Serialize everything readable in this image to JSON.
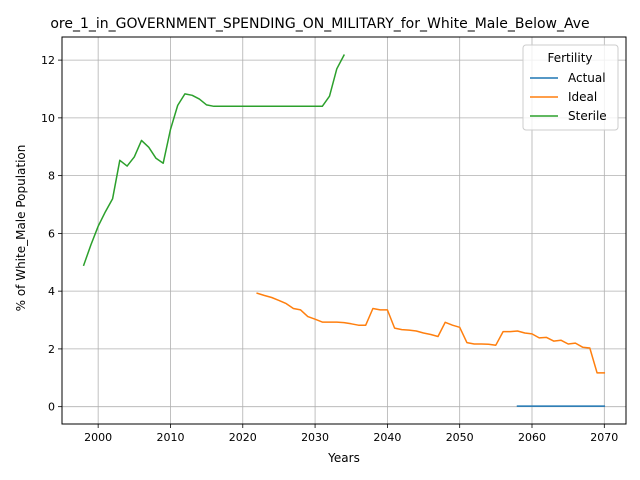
{
  "chart_data": {
    "type": "line",
    "title": "ore_1_in_GOVERNMENT_SPENDING_ON_MILITARY_for_White_Male_Below_Ave",
    "xlabel": "Years",
    "ylabel": "% of White_Male Population",
    "xlim": [
      1995,
      2073
    ],
    "ylim": [
      -0.6,
      12.8
    ],
    "xticks": [
      2000,
      2010,
      2020,
      2030,
      2040,
      2050,
      2060,
      2070
    ],
    "yticks": [
      0,
      2,
      4,
      6,
      8,
      10,
      12
    ],
    "grid": true,
    "legend": {
      "title": "Fertility",
      "position": "top-right"
    },
    "series": [
      {
        "name": "Actual",
        "color": "#1f77b4",
        "x": [
          2058,
          2060,
          2062,
          2064,
          2066,
          2068,
          2070
        ],
        "y": [
          0.02,
          0.02,
          0.02,
          0.02,
          0.02,
          0.02,
          0.02
        ]
      },
      {
        "name": "Ideal",
        "color": "#ff7f0e",
        "x": [
          2022,
          2023,
          2024,
          2025,
          2026,
          2027,
          2028,
          2029,
          2030,
          2031,
          2032,
          2033,
          2034,
          2035,
          2036,
          2037,
          2038,
          2039,
          2040,
          2041,
          2042,
          2043,
          2044,
          2045,
          2046,
          2047,
          2048,
          2049,
          2050,
          2051,
          2052,
          2053,
          2054,
          2055,
          2056,
          2057,
          2058,
          2059,
          2060,
          2061,
          2062,
          2063,
          2064,
          2065,
          2066,
          2067,
          2068,
          2069,
          2070
        ],
        "y": [
          3.93,
          3.85,
          3.78,
          3.68,
          3.57,
          3.4,
          3.35,
          3.12,
          3.03,
          2.93,
          2.93,
          2.93,
          2.91,
          2.87,
          2.82,
          2.82,
          3.4,
          3.35,
          3.35,
          2.72,
          2.67,
          2.65,
          2.62,
          2.55,
          2.5,
          2.43,
          2.92,
          2.82,
          2.75,
          2.22,
          2.17,
          2.17,
          2.16,
          2.13,
          2.6,
          2.6,
          2.62,
          2.55,
          2.52,
          2.38,
          2.4,
          2.27,
          2.3,
          2.17,
          2.2,
          2.06,
          2.03,
          1.17,
          1.17
        ]
      },
      {
        "name": "Sterile",
        "color": "#2ca02c",
        "x": [
          1998,
          1999,
          2000,
          2001,
          2002,
          2003,
          2004,
          2005,
          2006,
          2007,
          2008,
          2009,
          2010,
          2011,
          2012,
          2013,
          2014,
          2015,
          2016,
          2017,
          2018,
          2019,
          2020,
          2021,
          2022,
          2023,
          2024,
          2025,
          2026,
          2027,
          2028,
          2029,
          2030,
          2031,
          2032,
          2033,
          2034
        ],
        "y": [
          4.9,
          5.6,
          6.25,
          6.75,
          7.2,
          8.53,
          8.33,
          8.65,
          9.22,
          8.98,
          8.6,
          8.43,
          9.6,
          10.43,
          10.83,
          10.78,
          10.65,
          10.45,
          10.4,
          10.4,
          10.4,
          10.4,
          10.4,
          10.4,
          10.4,
          10.4,
          10.4,
          10.4,
          10.4,
          10.4,
          10.4,
          10.4,
          10.4,
          10.4,
          10.75,
          11.7,
          12.17
        ]
      }
    ]
  }
}
